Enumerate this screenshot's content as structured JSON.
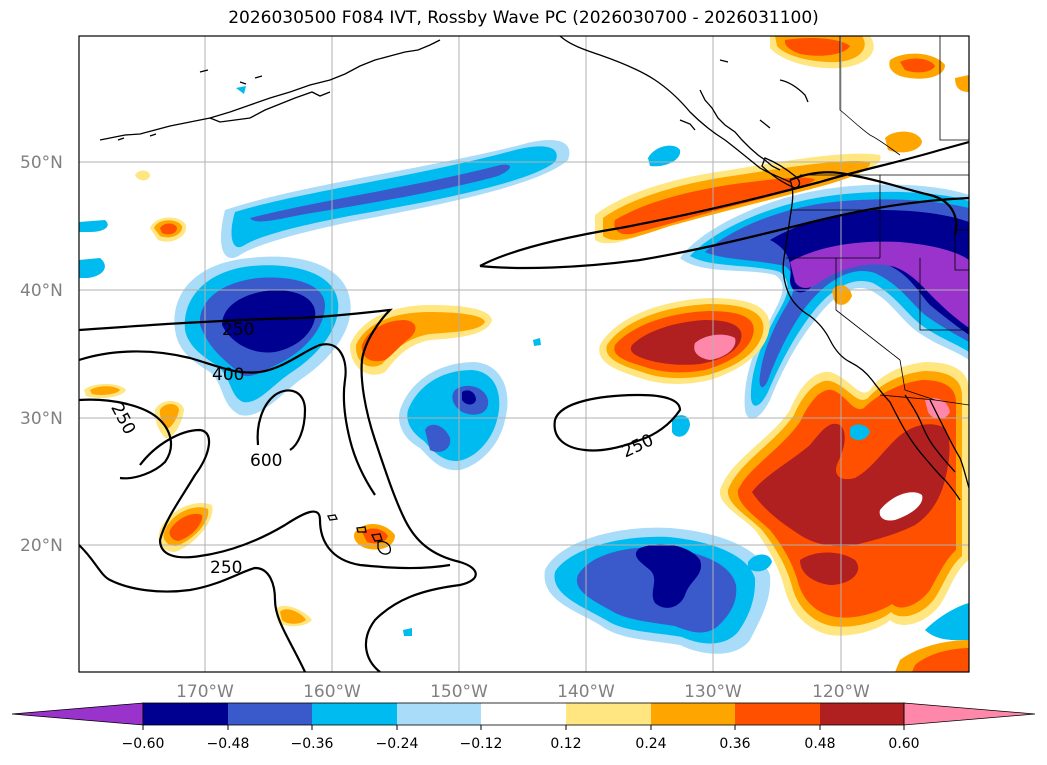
{
  "title": "2026030500 F084 IVT, Rossby Wave PC (2026030700 - 2026031100)",
  "map": {
    "lat_labels": [
      "50°N",
      "40°N",
      "30°N",
      "20°N"
    ],
    "lon_labels": [
      "170°W",
      "160°W",
      "150°W",
      "140°W",
      "130°W",
      "120°W"
    ],
    "contour_labels": [
      "250",
      "400",
      "250",
      "600",
      "250",
      "250"
    ]
  },
  "colorbar": {
    "labels": [
      "−0.60",
      "−0.48",
      "−0.36",
      "−0.24",
      "−0.12",
      "0.12",
      "0.24",
      "0.36",
      "0.48",
      "0.60"
    ],
    "colors": {
      "under": "#9933cc",
      "bins": [
        "#000090",
        "#3a5acc",
        "#00bbf0",
        "#a8dcf8",
        "#ffffff",
        "#ffe680",
        "#ffa500",
        "#ff5000",
        "#b02020",
        "#ff88aa"
      ],
      "over": "#ff88aa"
    }
  },
  "palette": {
    "purple": "#9933cc",
    "navy": "#000090",
    "royal": "#3a5acc",
    "cyan": "#00bbf0",
    "lightblue": "#a8dcf8",
    "yellow": "#ffe680",
    "orange": "#ffa500",
    "redorange": "#ff5000",
    "darkred": "#b02020",
    "pink": "#ff88aa",
    "grid": "#b0b0b0",
    "axis_label": "#808080"
  }
}
